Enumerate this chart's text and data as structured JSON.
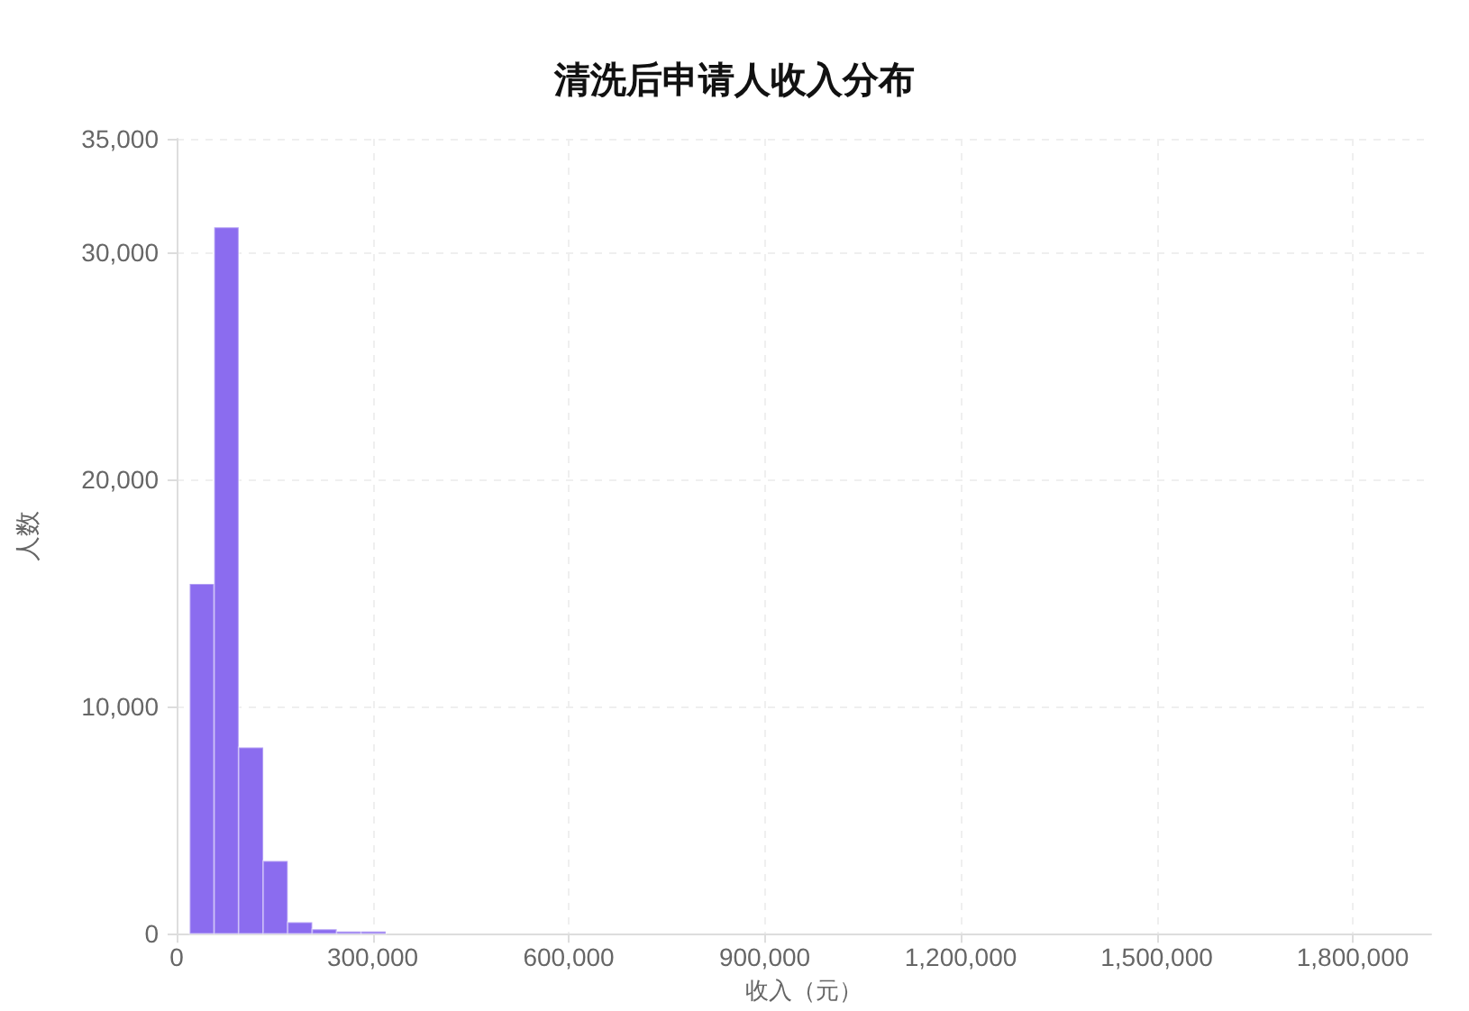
{
  "chart_data": {
    "type": "histogram",
    "title": "清洗后申请人收入分布",
    "xlabel": "收入（元）",
    "ylabel": "人数",
    "bins": [
      20000,
      57500,
      95000,
      132500,
      170000,
      207500,
      245000,
      282500,
      320000
    ],
    "values": [
      15400,
      31100,
      8200,
      3200,
      500,
      200,
      100,
      100
    ],
    "color": "#8b6cef",
    "xlim": [
      0,
      1920000
    ],
    "xticks": [
      0,
      {
        "value": 300000,
        "label": "300,000"
      },
      {
        "value": 600000,
        "label": "600,000"
      },
      {
        "value": 900000,
        "label": "900,000"
      },
      {
        "value": 1200000,
        "label": "1,200,000"
      },
      {
        "value": 1500000,
        "label": "1,500,000"
      },
      {
        "value": 1800000,
        "label": "1,800,000"
      }
    ],
    "ylim": [
      0,
      35000
    ],
    "yticks": [
      0,
      {
        "value": 10000,
        "label": "10,000"
      },
      {
        "value": 20000,
        "label": "20,000"
      },
      {
        "value": 30000,
        "label": "30,000"
      },
      {
        "value": 35000,
        "label": "35,000"
      }
    ],
    "grid": true
  }
}
